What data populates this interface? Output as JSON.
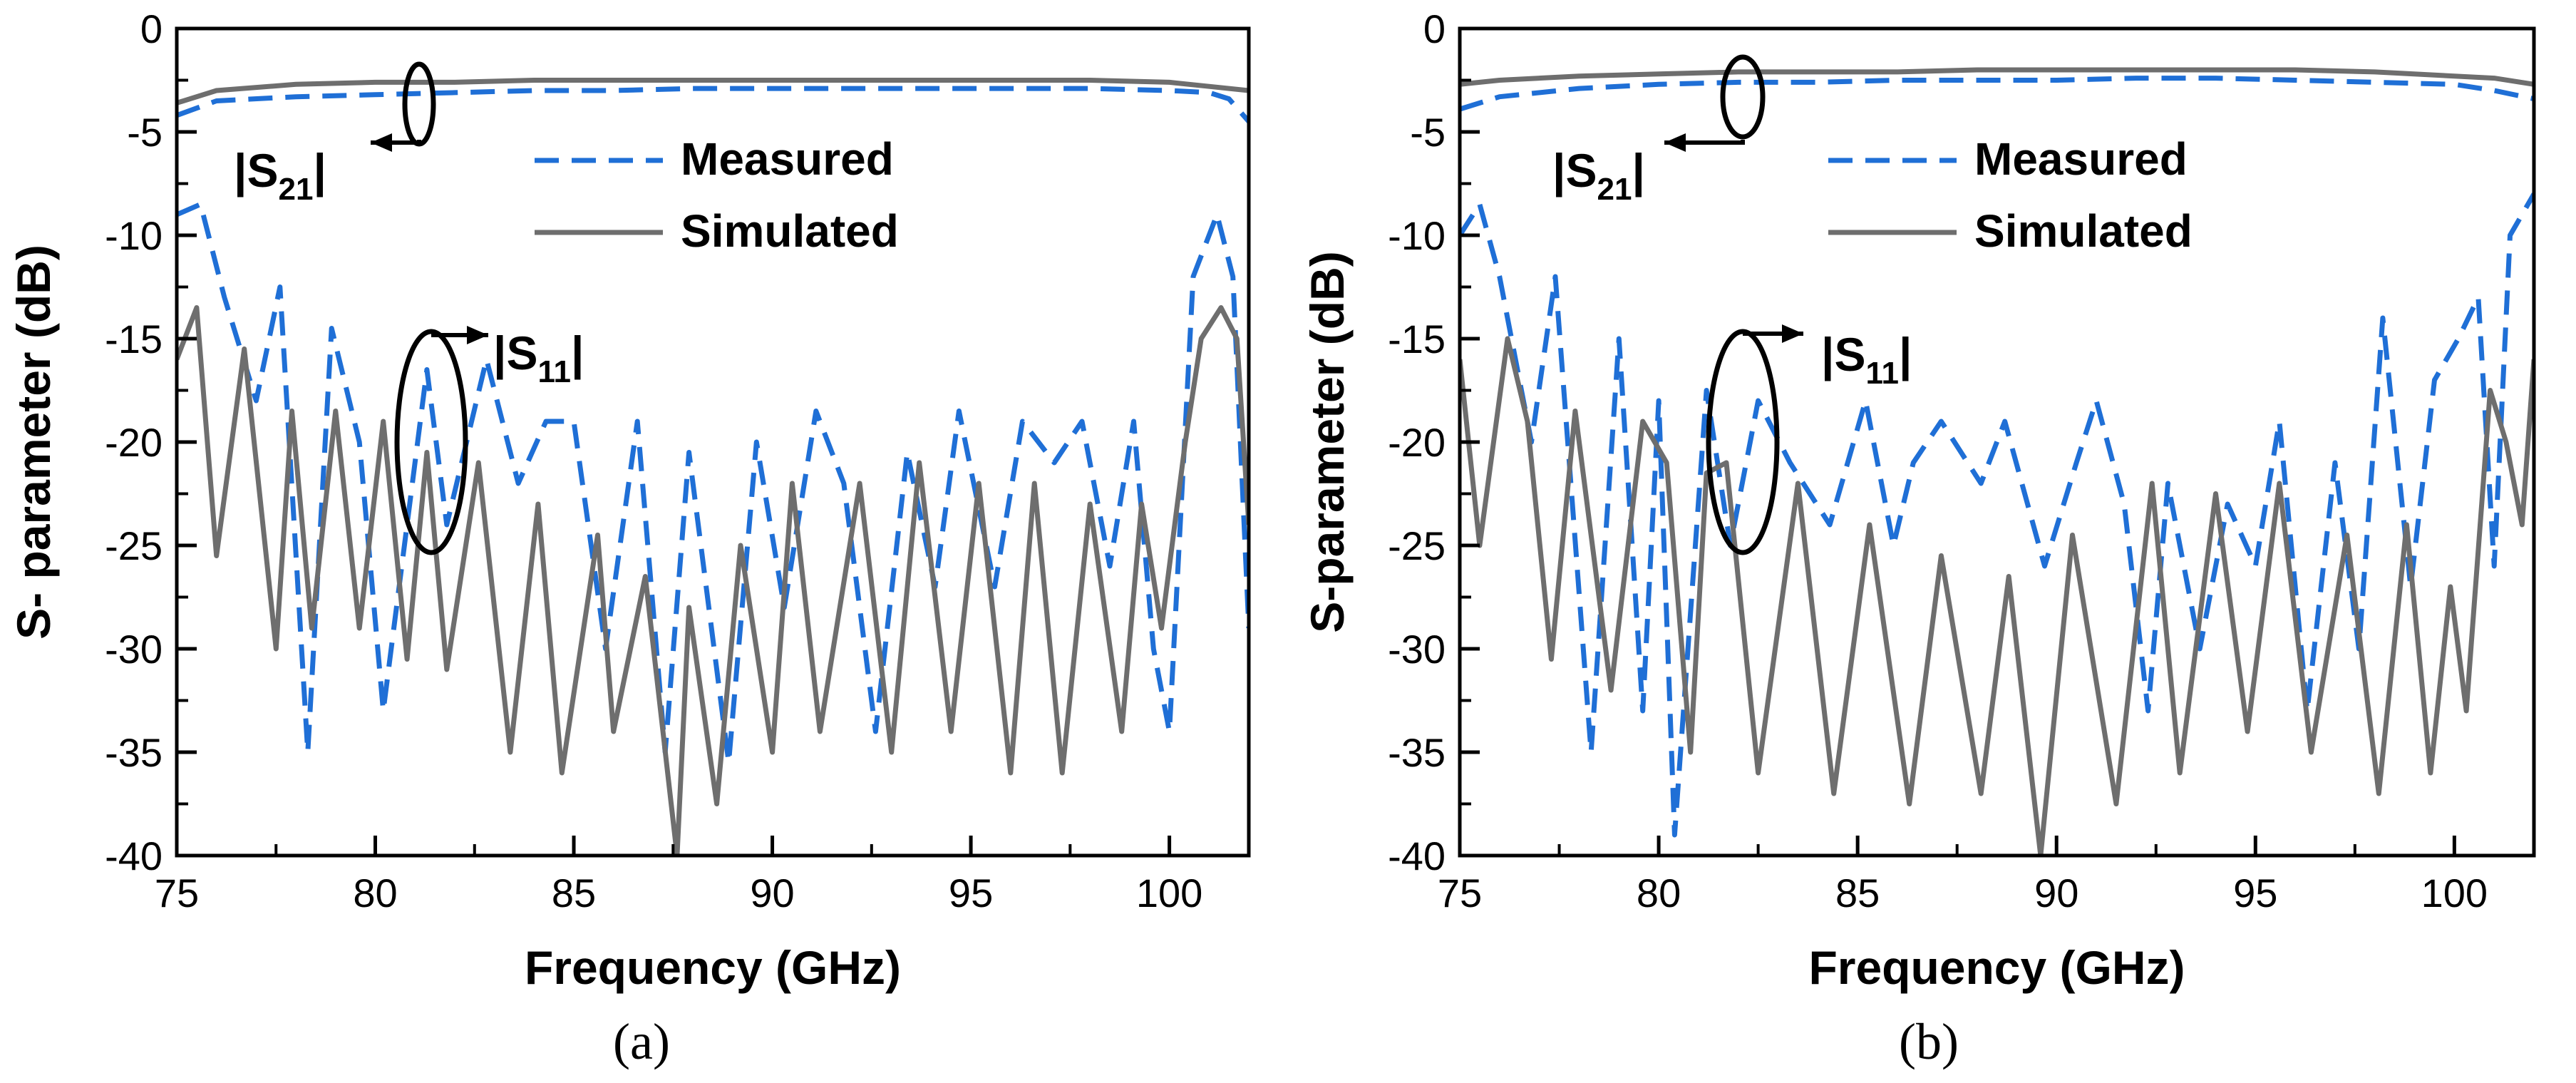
{
  "colors": {
    "measured": "#1f6fd6",
    "simulated": "#6e6e6e",
    "axis": "#000000"
  },
  "chart_data": [
    {
      "type": "line",
      "panel": "(a)",
      "xlabel": "Frequency (GHz)",
      "ylabel": "S- parameter (dB)",
      "xlim": [
        75,
        102
      ],
      "ylim": [
        -40,
        0
      ],
      "xticks": [
        75,
        80,
        85,
        90,
        95,
        100
      ],
      "yticks": [
        0,
        -5,
        -10,
        -15,
        -20,
        -25,
        -30,
        -35,
        -40
      ],
      "legend": [
        "Measured",
        "Simulated"
      ],
      "annotations": {
        "s21": {
          "prefix": "|S",
          "sub": "21",
          "suffix": "|"
        },
        "s11": {
          "prefix": "|S",
          "sub": "11",
          "suffix": "|"
        }
      },
      "series": [
        {
          "name": "Measured |S21|",
          "style": "dashed",
          "x": [
            75,
            76,
            78,
            80,
            82,
            84,
            86,
            88,
            90,
            92,
            94,
            96,
            98,
            100,
            101,
            101.5,
            102
          ],
          "y": [
            -4.2,
            -3.5,
            -3.3,
            -3.2,
            -3.1,
            -3.0,
            -3.0,
            -2.9,
            -2.9,
            -2.9,
            -2.9,
            -2.9,
            -2.9,
            -3.0,
            -3.1,
            -3.4,
            -4.5
          ]
        },
        {
          "name": "Simulated |S21|",
          "style": "solid",
          "x": [
            75,
            76,
            78,
            80,
            82,
            84,
            86,
            88,
            90,
            92,
            94,
            96,
            98,
            100,
            101,
            102
          ],
          "y": [
            -3.6,
            -3.0,
            -2.7,
            -2.6,
            -2.6,
            -2.5,
            -2.5,
            -2.5,
            -2.5,
            -2.5,
            -2.5,
            -2.5,
            -2.5,
            -2.6,
            -2.8,
            -3.0
          ]
        },
        {
          "name": "Measured |S11|",
          "style": "dashed",
          "x": [
            75,
            75.6,
            76.2,
            77.0,
            77.6,
            78.3,
            78.9,
            79.6,
            80.2,
            81.3,
            81.8,
            82.8,
            83.6,
            84.3,
            85.0,
            85.8,
            86.6,
            87.3,
            87.9,
            88.9,
            89.6,
            90.3,
            91.1,
            91.8,
            92.6,
            93.4,
            94.1,
            94.7,
            95.6,
            96.3,
            97.1,
            97.8,
            98.5,
            99.1,
            99.6,
            100.0,
            100.6,
            101.2,
            101.6,
            102
          ],
          "y": [
            -9,
            -8.5,
            -13,
            -18,
            -12.5,
            -35,
            -14.5,
            -20,
            -33,
            -16.5,
            -24,
            -16,
            -22,
            -19,
            -19,
            -30,
            -19,
            -35,
            -20.5,
            -35.5,
            -20,
            -28,
            -18.5,
            -22,
            -34,
            -20.5,
            -27,
            -18.5,
            -27,
            -19,
            -21,
            -19,
            -26,
            -19,
            -30,
            -34,
            -12,
            -9,
            -12,
            -29
          ]
        },
        {
          "name": "Simulated |S11|",
          "style": "solid",
          "x": [
            75,
            75.5,
            76.0,
            76.7,
            77.5,
            77.9,
            78.4,
            79.0,
            79.6,
            80.2,
            80.8,
            81.3,
            81.8,
            82.6,
            83.4,
            84.1,
            84.7,
            85.6,
            86.0,
            86.8,
            87.6,
            87.9,
            88.6,
            89.2,
            90.0,
            90.5,
            91.2,
            92.2,
            93.0,
            93.7,
            94.5,
            95.2,
            96.0,
            96.6,
            97.3,
            98.0,
            98.8,
            99.3,
            99.8,
            100.4,
            100.8,
            101.3,
            101.7,
            102
          ],
          "y": [
            -16,
            -13.5,
            -25.5,
            -15.5,
            -30,
            -18.5,
            -29,
            -18.5,
            -29,
            -19,
            -30.5,
            -20.5,
            -31,
            -21,
            -35,
            -23,
            -36,
            -24.5,
            -34,
            -26.5,
            -40,
            -28,
            -37.5,
            -25,
            -35,
            -22,
            -34,
            -22,
            -35,
            -21,
            -34,
            -22,
            -36,
            -22,
            -36,
            -23,
            -34,
            -23,
            -29,
            -20,
            -15,
            -13.5,
            -15,
            -24
          ]
        }
      ]
    },
    {
      "type": "line",
      "panel": "(b)",
      "xlabel": "Frequency (GHz)",
      "ylabel": "S-parameter (dB)",
      "xlim": [
        75,
        102
      ],
      "ylim": [
        -40,
        0
      ],
      "xticks": [
        75,
        80,
        85,
        90,
        95,
        100
      ],
      "yticks": [
        0,
        -5,
        -10,
        -15,
        -20,
        -25,
        -30,
        -35,
        -40
      ],
      "legend": [
        "Measured",
        "Simulated"
      ],
      "annotations": {
        "s21": {
          "prefix": "|S",
          "sub": "21",
          "suffix": "|"
        },
        "s11": {
          "prefix": "|S",
          "sub": "11",
          "suffix": "|"
        }
      },
      "series": [
        {
          "name": "Measured |S21|",
          "style": "dashed",
          "x": [
            75,
            76,
            78,
            80,
            82,
            84,
            86,
            88,
            90,
            92,
            94,
            96,
            98,
            100,
            101,
            102
          ],
          "y": [
            -3.9,
            -3.3,
            -2.9,
            -2.7,
            -2.6,
            -2.6,
            -2.5,
            -2.5,
            -2.5,
            -2.4,
            -2.4,
            -2.5,
            -2.6,
            -2.7,
            -3.0,
            -3.4
          ]
        },
        {
          "name": "Simulated |S21|",
          "style": "solid",
          "x": [
            75,
            76,
            78,
            80,
            82,
            84,
            86,
            88,
            90,
            92,
            94,
            96,
            98,
            100,
            101,
            102
          ],
          "y": [
            -2.7,
            -2.5,
            -2.3,
            -2.2,
            -2.1,
            -2.1,
            -2.1,
            -2.0,
            -2.0,
            -2.0,
            -2.0,
            -2.0,
            -2.1,
            -2.3,
            -2.4,
            -2.7
          ]
        },
        {
          "name": "Measured |S11|",
          "style": "dashed",
          "x": [
            75,
            75.5,
            76.0,
            76.8,
            77.4,
            78.3,
            79.0,
            79.6,
            80.0,
            80.4,
            81.2,
            81.8,
            82.5,
            83.3,
            84.3,
            85.2,
            85.9,
            86.4,
            87.1,
            88.1,
            88.7,
            89.7,
            90.5,
            91.0,
            91.7,
            92.3,
            92.8,
            93.6,
            94.3,
            95.0,
            95.6,
            96.3,
            97.0,
            97.6,
            98.2,
            98.9,
            99.5,
            100.1,
            100.6,
            101.0,
            101.4,
            102
          ],
          "y": [
            -10,
            -8.5,
            -12,
            -20,
            -12,
            -35,
            -15,
            -33,
            -18,
            -39,
            -17.5,
            -25,
            -18,
            -21,
            -24,
            -18,
            -25,
            -21,
            -19,
            -22,
            -19,
            -26,
            -21,
            -18,
            -23,
            -33,
            -22,
            -30,
            -23,
            -26,
            -19,
            -33,
            -21,
            -30,
            -14,
            -27,
            -17,
            -15,
            -13,
            -26,
            -10,
            -8
          ]
        },
        {
          "name": "Simulated |S11|",
          "style": "solid",
          "x": [
            75,
            75.5,
            76.2,
            76.7,
            77.3,
            77.9,
            78.8,
            79.6,
            80.2,
            80.8,
            81.2,
            81.7,
            82.5,
            83.5,
            84.4,
            85.3,
            86.3,
            87.1,
            88.1,
            88.8,
            89.6,
            90.4,
            91.5,
            92.4,
            93.1,
            94.0,
            94.8,
            95.6,
            96.4,
            97.3,
            98.1,
            98.8,
            99.4,
            99.9,
            100.3,
            100.9,
            101.3,
            101.7,
            102
          ],
          "y": [
            -16,
            -25,
            -15,
            -19,
            -30.5,
            -18.5,
            -32,
            -19,
            -21,
            -35,
            -21.5,
            -21,
            -36,
            -22,
            -37,
            -24,
            -37.5,
            -25.5,
            -37,
            -26.5,
            -40,
            -24.5,
            -37.5,
            -22,
            -36,
            -22.5,
            -34,
            -22,
            -35,
            -24.5,
            -37,
            -24,
            -36,
            -27,
            -33,
            -17.5,
            -20,
            -24,
            -16
          ]
        }
      ]
    }
  ]
}
